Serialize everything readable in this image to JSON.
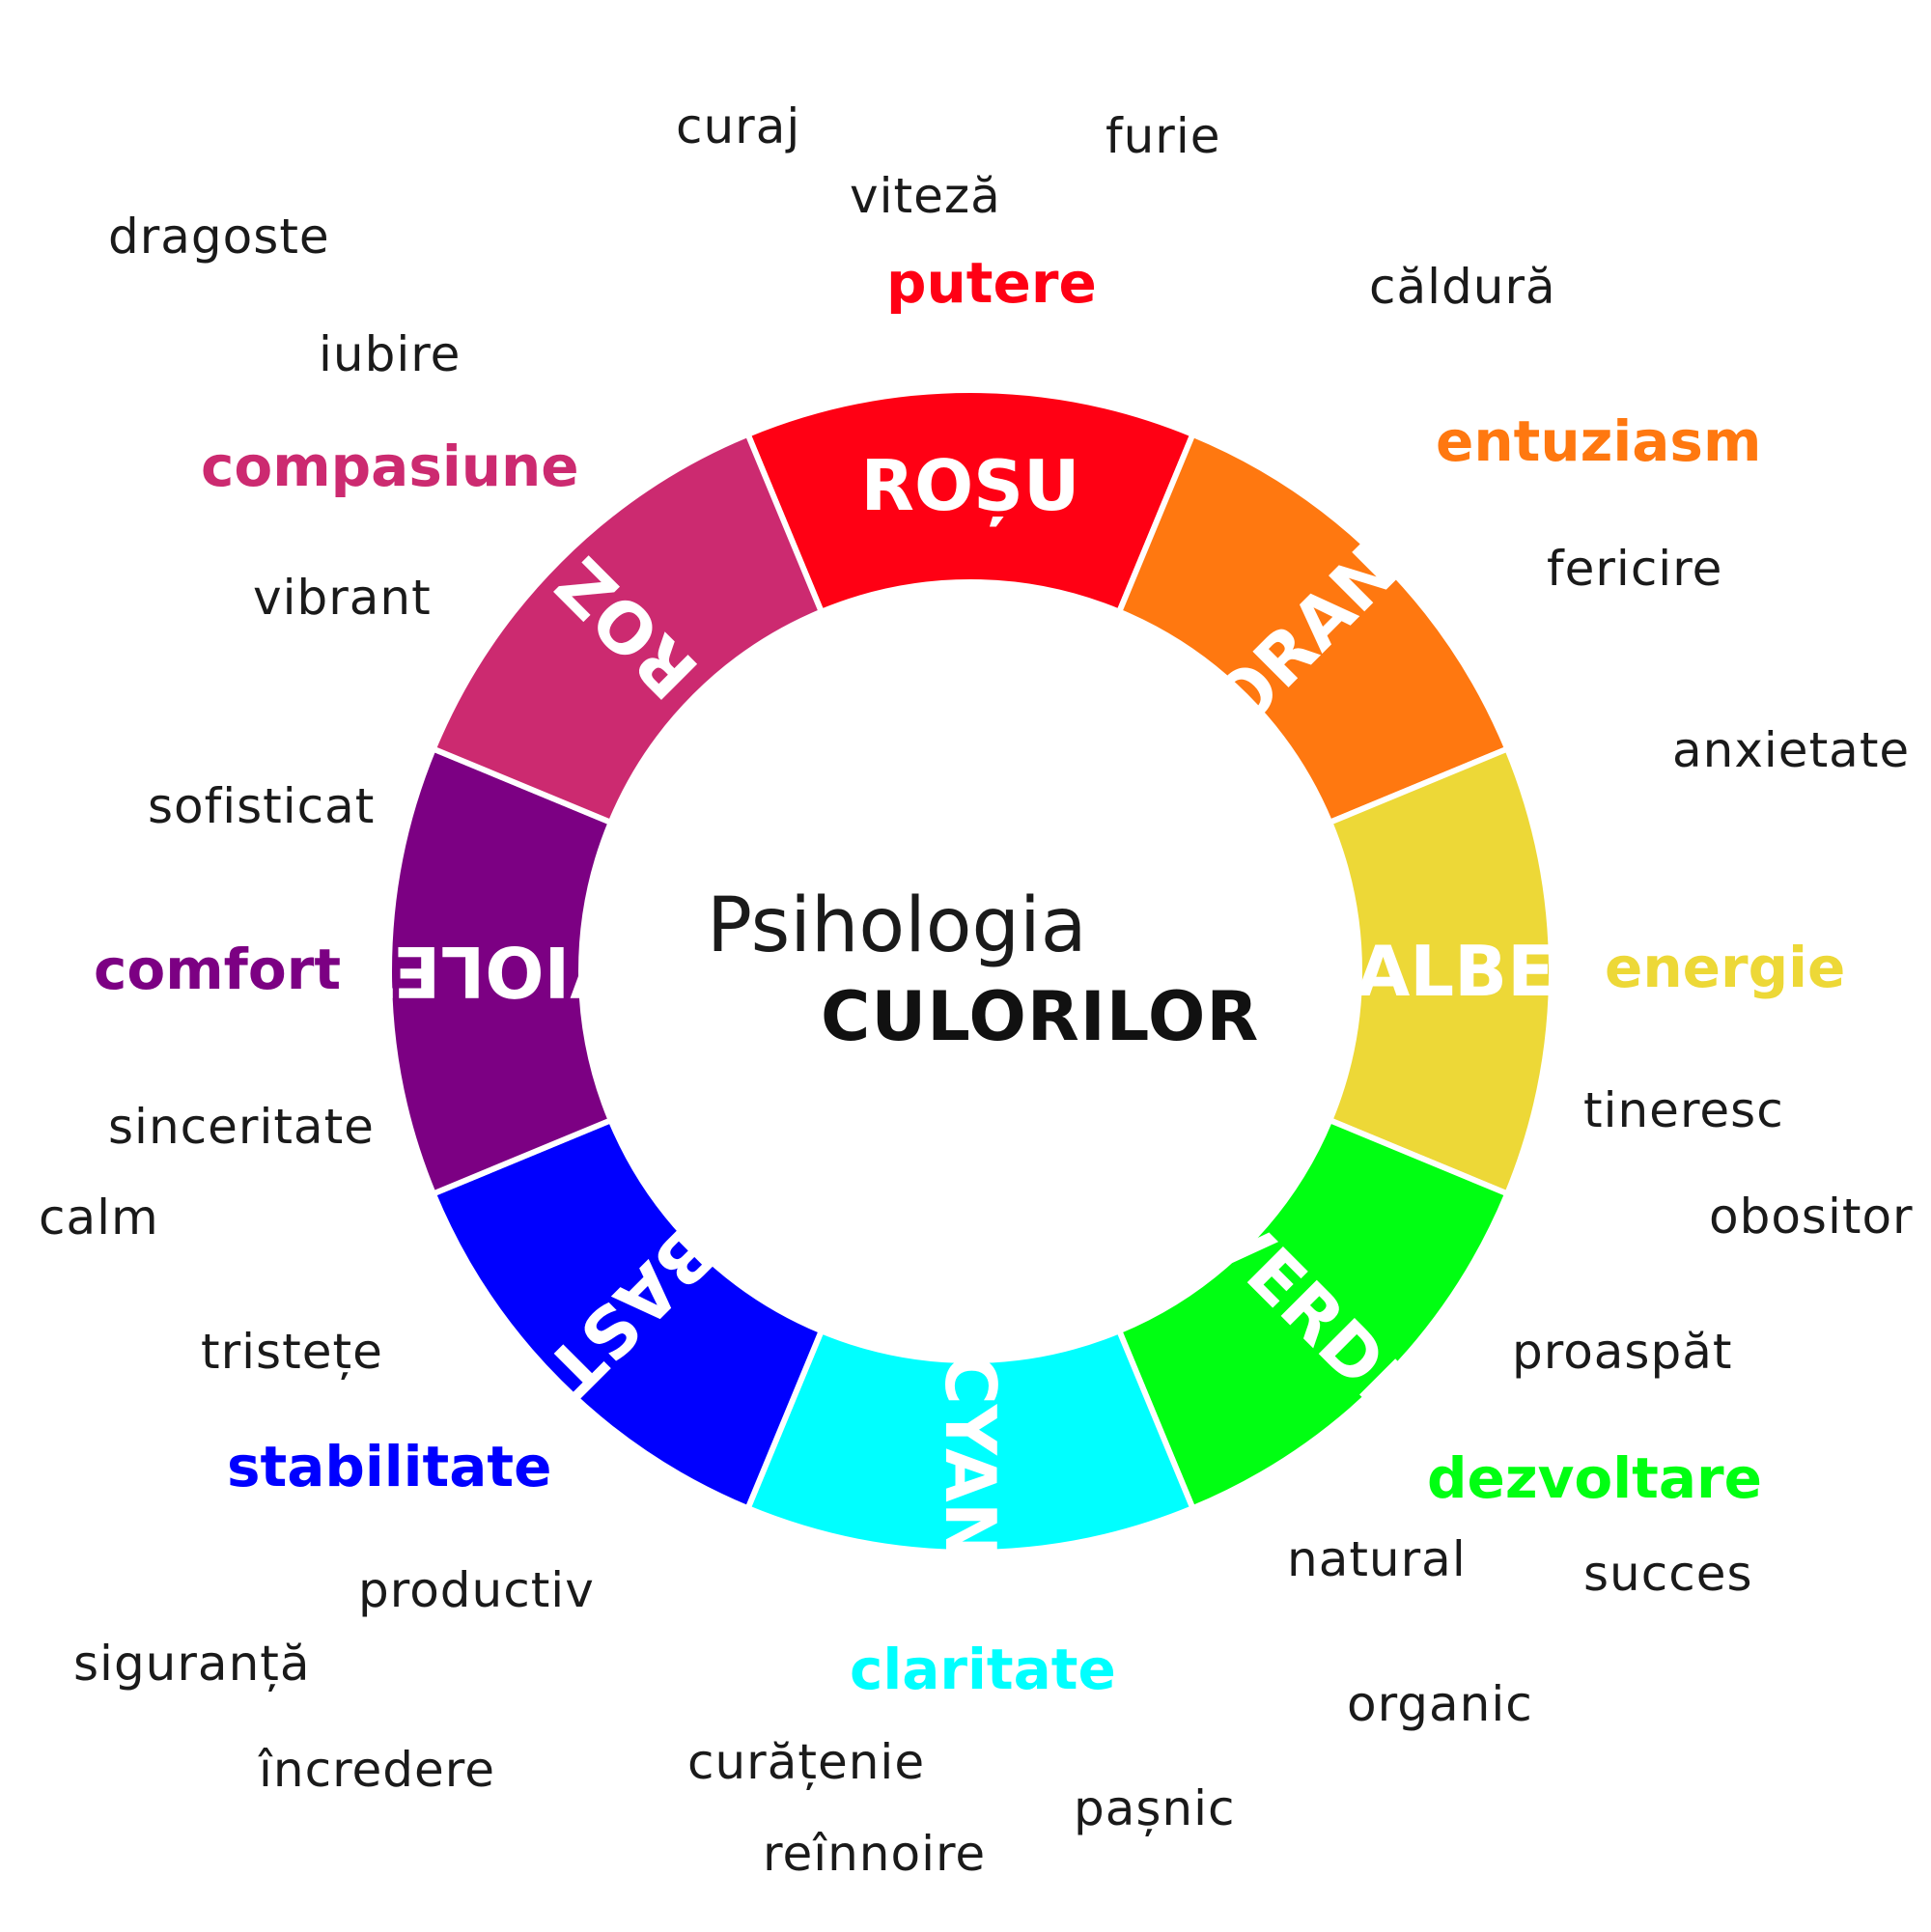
{
  "title": {
    "line1": "Psihologia",
    "line2": "CULORILOR"
  },
  "segments": [
    {
      "label": "ROȘU",
      "color": "#FF0014"
    },
    {
      "label": "ORANJ",
      "color": "#FF7810"
    },
    {
      "label": "GALBEN",
      "color": "#EDD837"
    },
    {
      "label": "VERDE",
      "color": "#00FF12"
    },
    {
      "label": "CYAN",
      "color": "#00FFFF"
    },
    {
      "label": "ALBASTRU",
      "color": "#0000FF"
    },
    {
      "label": "VIOLET",
      "color": "#7C0083"
    },
    {
      "label": "ROZ",
      "color": "#CC2A70"
    }
  ],
  "keywords": {
    "putere": {
      "text": "putere",
      "color": "#FF0014"
    },
    "entuziasm": {
      "text": "entuziasm",
      "color": "#FF7810"
    },
    "energie": {
      "text": "energie",
      "color": "#EDD837"
    },
    "dezvoltare": {
      "text": "dezvoltare",
      "color": "#00FF12"
    },
    "claritate": {
      "text": "claritate",
      "color": "#00FFFF"
    },
    "stabilitate": {
      "text": "stabilitate",
      "color": "#0000FF"
    },
    "comfort": {
      "text": "comfort",
      "color": "#7C0083"
    },
    "compasiune": {
      "text": "compasiune",
      "color": "#CC2A70"
    }
  },
  "words": {
    "curaj": "curaj",
    "furie": "furie",
    "viteza": "viteză",
    "caldura": "căldură",
    "dragoste": "dragoste",
    "iubire": "iubire",
    "vibrant": "vibrant",
    "fericire": "fericire",
    "anxietate": "anxietate",
    "sofisticat": "sofisticat",
    "tineresc": "tineresc",
    "obositor": "obositor",
    "sinceritate": "sinceritate",
    "calm": "calm",
    "proaspat": "proaspăt",
    "tristete": "tristețe",
    "natural": "natural",
    "succes": "succes",
    "productiv": "productiv",
    "siguranta": "siguranță",
    "organic": "organic",
    "incredere": "încredere",
    "curatenie": "curățenie",
    "pasnic": "pașnic",
    "reinnoire": "reînnoire"
  }
}
